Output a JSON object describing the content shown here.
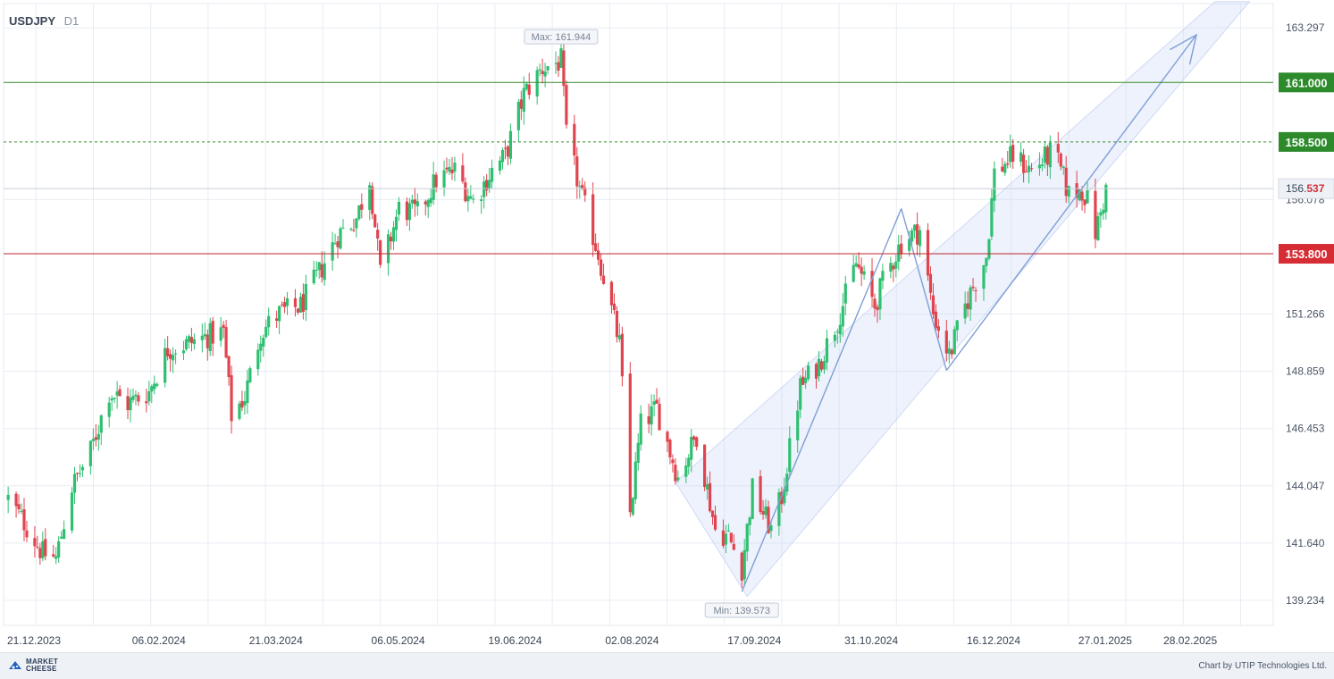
{
  "header": {
    "symbol": "USDJPY",
    "timeframe": "D1"
  },
  "footer": {
    "brand": "MARKET CHEESE",
    "brand_line1": "MARKET",
    "brand_line2": "CHEESE",
    "credit": "Chart by UTIP Technologies Ltd."
  },
  "chart_data": {
    "type": "candlestick",
    "symbol": "USDJPY",
    "timeframe": "D1",
    "x_tick_labels": [
      "21.12.2023",
      "06.02.2024",
      "21.03.2024",
      "06.05.2024",
      "19.06.2024",
      "02.08.2024",
      "17.09.2024",
      "31.10.2024",
      "16.12.2024",
      "27.01.2025",
      "28.02.2025"
    ],
    "y_tick_labels": [
      "163.297",
      "156.078",
      "151.266",
      "148.859",
      "146.453",
      "144.047",
      "141.640",
      "139.234"
    ],
    "ylim": [
      138.6,
      164.0
    ],
    "grid": true,
    "current_price": {
      "value": 156.537,
      "label_main": "156.",
      "label_frac": "537"
    },
    "max_marker": {
      "label": "Max: 161.944",
      "value": 161.944
    },
    "min_marker": {
      "label": "Min: 139.573",
      "value": 139.573
    },
    "horizontal_levels": [
      {
        "value": 161.0,
        "label": "161.000",
        "style": "solid",
        "color": "#3b8a2e"
      },
      {
        "value": 158.5,
        "label": "158.500",
        "style": "dashed",
        "color": "#3b8a2e"
      },
      {
        "value": 153.8,
        "label": "153.800",
        "style": "solid",
        "color": "#c0272d"
      }
    ],
    "anchors": [
      [
        "2023-12-15",
        143.5
      ],
      [
        "2023-12-21",
        142.5
      ],
      [
        "2023-12-28",
        141.2
      ],
      [
        "2024-01-02",
        141.0
      ],
      [
        "2024-01-08",
        144.0
      ],
      [
        "2024-01-15",
        145.5
      ],
      [
        "2024-01-22",
        148.0
      ],
      [
        "2024-01-29",
        147.5
      ],
      [
        "2024-02-06",
        148.0
      ],
      [
        "2024-02-13",
        149.8
      ],
      [
        "2024-02-20",
        150.0
      ],
      [
        "2024-02-27",
        150.3
      ],
      [
        "2024-03-05",
        150.5
      ],
      [
        "2024-03-08",
        147.0
      ],
      [
        "2024-03-13",
        147.8
      ],
      [
        "2024-03-19",
        150.5
      ],
      [
        "2024-03-26",
        151.3
      ],
      [
        "2024-04-03",
        151.6
      ],
      [
        "2024-04-10",
        153.0
      ],
      [
        "2024-04-17",
        154.6
      ],
      [
        "2024-04-24",
        155.3
      ],
      [
        "2024-04-29",
        157.0
      ],
      [
        "2024-05-03",
        153.0
      ],
      [
        "2024-05-10",
        155.7
      ],
      [
        "2024-05-17",
        155.5
      ],
      [
        "2024-05-24",
        156.9
      ],
      [
        "2024-05-31",
        157.3
      ],
      [
        "2024-06-07",
        156.0
      ],
      [
        "2024-06-14",
        157.3
      ],
      [
        "2024-06-19",
        157.9
      ],
      [
        "2024-06-26",
        160.5
      ],
      [
        "2024-07-03",
        161.6
      ],
      [
        "2024-07-10",
        161.9
      ],
      [
        "2024-07-12",
        158.8
      ],
      [
        "2024-07-17",
        156.5
      ],
      [
        "2024-07-24",
        153.8
      ],
      [
        "2024-08-01",
        150.0
      ],
      [
        "2024-08-05",
        142.9
      ],
      [
        "2024-08-09",
        146.6
      ],
      [
        "2024-08-15",
        147.3
      ],
      [
        "2024-08-23",
        144.4
      ],
      [
        "2024-08-30",
        146.2
      ],
      [
        "2024-09-06",
        142.2
      ],
      [
        "2024-09-11",
        141.9
      ],
      [
        "2024-09-16",
        140.6
      ],
      [
        "2024-09-20",
        143.9
      ],
      [
        "2024-09-27",
        142.2
      ],
      [
        "2024-10-01",
        143.6
      ],
      [
        "2024-10-08",
        148.2
      ],
      [
        "2024-10-15",
        149.2
      ],
      [
        "2024-10-22",
        151.0
      ],
      [
        "2024-10-29",
        153.4
      ],
      [
        "2024-11-05",
        151.6
      ],
      [
        "2024-11-08",
        152.6
      ],
      [
        "2024-11-15",
        154.3
      ],
      [
        "2024-11-19",
        154.6
      ],
      [
        "2024-11-22",
        154.8
      ],
      [
        "2024-11-27",
        151.3
      ],
      [
        "2024-12-03",
        149.5
      ],
      [
        "2024-12-10",
        151.9
      ],
      [
        "2024-12-17",
        153.7
      ],
      [
        "2024-12-20",
        157.2
      ],
      [
        "2024-12-27",
        157.9
      ],
      [
        "2025-01-03",
        157.3
      ],
      [
        "2025-01-10",
        158.0
      ],
      [
        "2025-01-13",
        157.6
      ],
      [
        "2025-01-17",
        156.3
      ],
      [
        "2025-01-22",
        156.5
      ],
      [
        "2025-01-24",
        156.0
      ],
      [
        "2025-01-27",
        154.7
      ],
      [
        "2025-01-29",
        155.5
      ],
      [
        "2025-01-31",
        156.5
      ]
    ],
    "trend_lines": [
      {
        "from": [
          "2024-09-16",
          139.6
        ],
        "to": [
          "2024-11-15",
          155.7
        ]
      },
      {
        "from": [
          "2024-11-15",
          155.7
        ],
        "to": [
          "2024-12-02",
          148.9
        ]
      },
      {
        "from": [
          "2024-12-02",
          148.9
        ],
        "to": [
          "2025-03-06",
          163.0
        ],
        "arrow": true
      }
    ],
    "channel": {
      "lower": [
        [
          "2024-08-22",
          144.2
        ],
        [
          "2025-03-13",
          164.4
        ]
      ],
      "upper": [
        [
          "2024-09-18",
          139.4
        ],
        [
          "2025-03-26",
          164.4
        ]
      ]
    }
  }
}
